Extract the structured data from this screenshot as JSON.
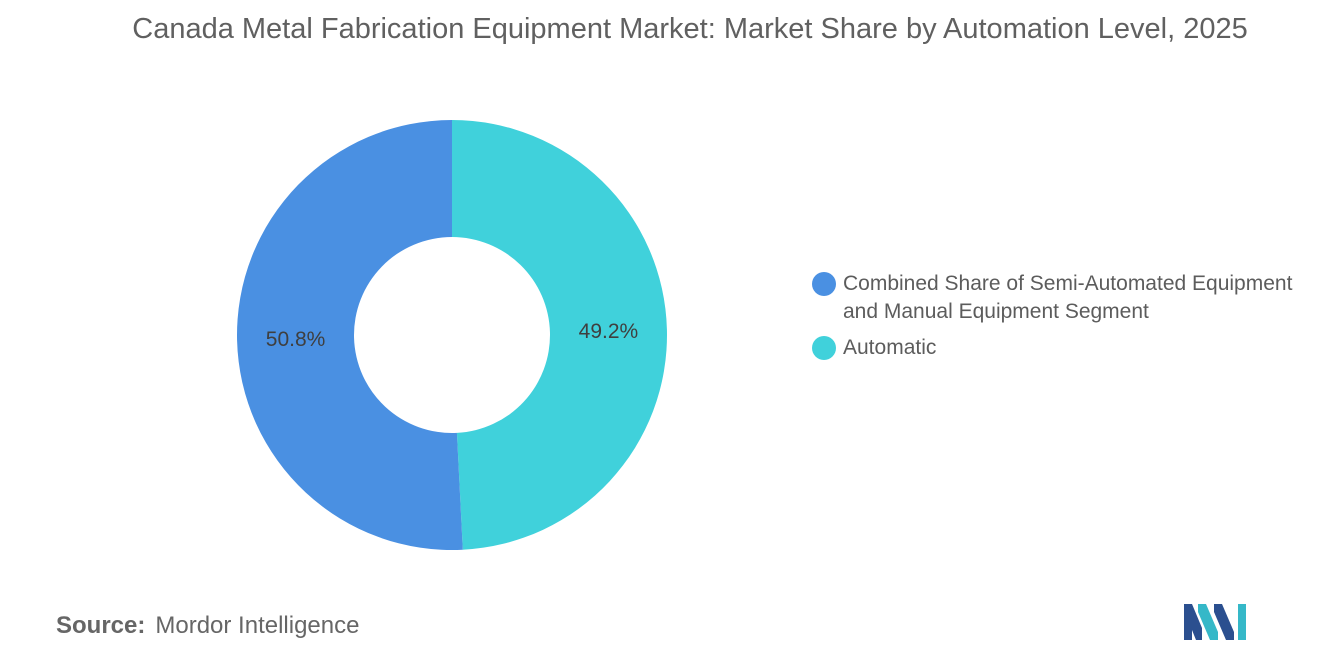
{
  "title": "Canada Metal Fabrication Equipment Market: Market Share by Automation Level, 2025",
  "chart_data": {
    "type": "pie",
    "donut": true,
    "title": "Canada Metal Fabrication Equipment Market: Market Share by Automation Level, 2025",
    "slices": [
      {
        "label": "Combined Share of Semi-Automated Equipment and Manual Equipment Segment",
        "value": 50.8,
        "value_label": "50.8%",
        "color": "#4a90e2"
      },
      {
        "label": "Automatic",
        "value": 49.2,
        "value_label": "49.2%",
        "color": "#40d1db"
      }
    ],
    "legend_position": "right"
  },
  "source": {
    "prefix": "Source:",
    "text": "Mordor Intelligence"
  },
  "logo": {
    "icon": "mordor-intelligence-logo",
    "colors": [
      "#1f3b73",
      "#35b8c8"
    ]
  }
}
